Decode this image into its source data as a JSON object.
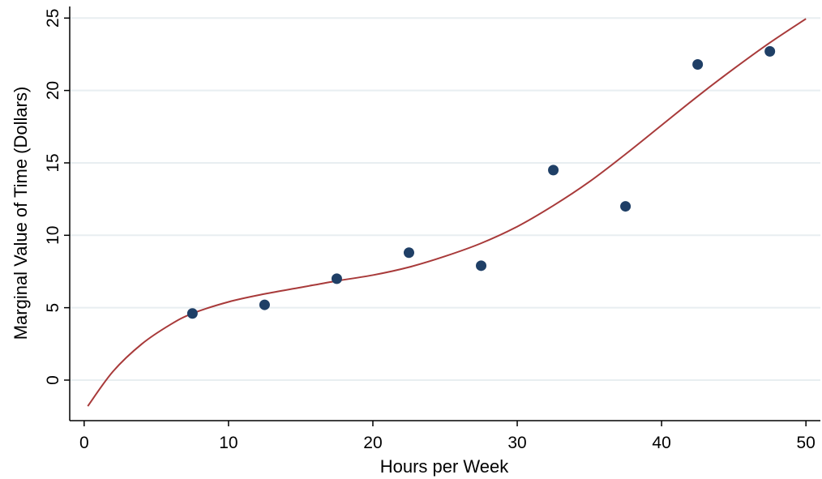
{
  "chart_data": {
    "type": "scatter",
    "xlabel": "Hours per Week",
    "ylabel": "Marginal Value of Time (Dollars)",
    "xlim": [
      -1,
      51
    ],
    "ylim": [
      -2.8,
      25.8
    ],
    "xticks": [
      0,
      10,
      20,
      30,
      40,
      50
    ],
    "yticks": [
      0,
      5,
      10,
      15,
      20,
      25
    ],
    "grid": "horizontal",
    "legend": "none",
    "series": [
      {
        "kind": "scatter",
        "color": "#1f3f66",
        "points": [
          {
            "x": 7.5,
            "y": 4.6
          },
          {
            "x": 12.5,
            "y": 5.2
          },
          {
            "x": 17.5,
            "y": 7.0
          },
          {
            "x": 22.5,
            "y": 8.8
          },
          {
            "x": 27.5,
            "y": 7.9
          },
          {
            "x": 32.5,
            "y": 14.5
          },
          {
            "x": 37.5,
            "y": 12.0
          },
          {
            "x": 42.5,
            "y": 21.8
          },
          {
            "x": 47.5,
            "y": 22.7
          }
        ]
      },
      {
        "kind": "line",
        "color": "#a83a3a",
        "points": [
          {
            "x": 0.25,
            "y": -1.8
          },
          {
            "x": 2,
            "y": 0.6
          },
          {
            "x": 4,
            "y": 2.5
          },
          {
            "x": 6,
            "y": 3.85
          },
          {
            "x": 7.5,
            "y": 4.6
          },
          {
            "x": 10,
            "y": 5.4
          },
          {
            "x": 12.5,
            "y": 5.95
          },
          {
            "x": 15,
            "y": 6.4
          },
          {
            "x": 17.5,
            "y": 6.85
          },
          {
            "x": 20,
            "y": 7.25
          },
          {
            "x": 22.5,
            "y": 7.8
          },
          {
            "x": 25,
            "y": 8.55
          },
          {
            "x": 27.5,
            "y": 9.45
          },
          {
            "x": 30,
            "y": 10.6
          },
          {
            "x": 32.5,
            "y": 12.05
          },
          {
            "x": 35,
            "y": 13.7
          },
          {
            "x": 37.5,
            "y": 15.6
          },
          {
            "x": 40,
            "y": 17.6
          },
          {
            "x": 42.5,
            "y": 19.6
          },
          {
            "x": 45,
            "y": 21.5
          },
          {
            "x": 47.5,
            "y": 23.3
          },
          {
            "x": 50,
            "y": 24.95
          }
        ]
      }
    ]
  }
}
